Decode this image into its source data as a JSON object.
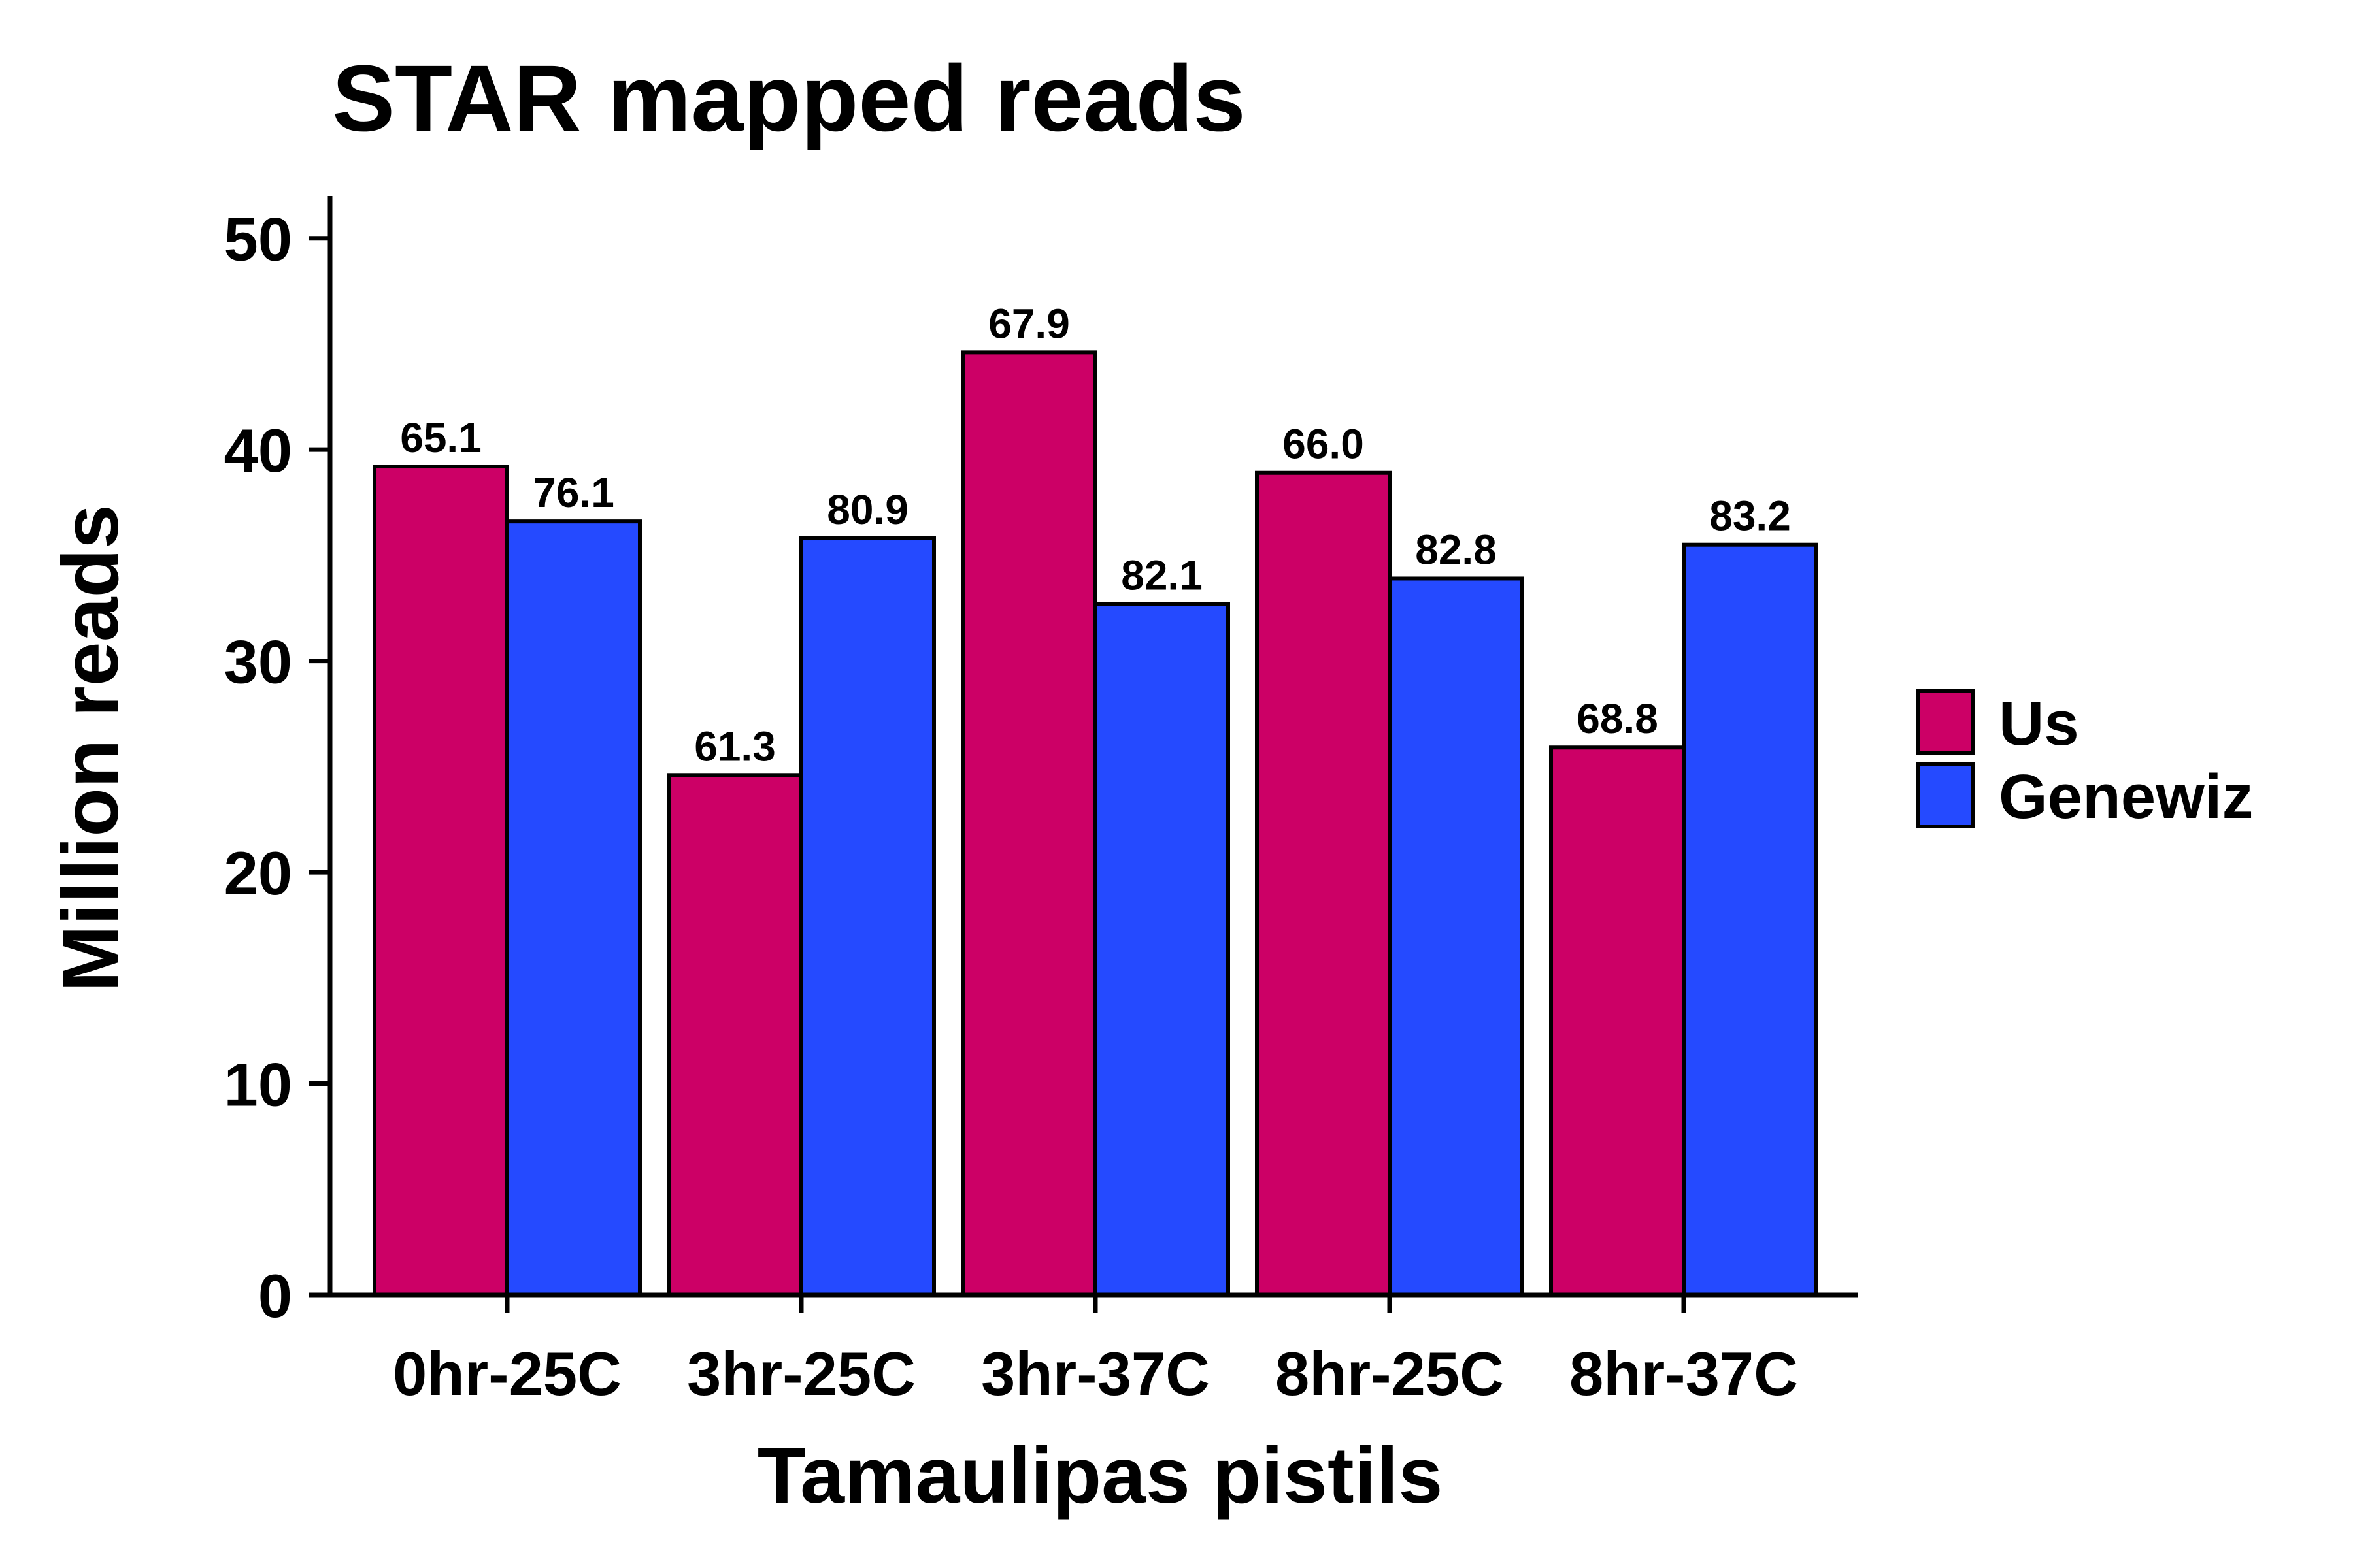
{
  "chart_data": {
    "type": "bar",
    "title": "STAR mapped reads",
    "xlabel": "Tamaulipas pistils",
    "ylabel": "Million reads",
    "categories": [
      "0hr-25C",
      "3hr-25C",
      "3hr-37C",
      "8hr-25C",
      "8hr-37C"
    ],
    "series": [
      {
        "name": "Us",
        "color": "#CC0066",
        "values": [
          39.2,
          24.6,
          44.6,
          38.9,
          25.9
        ],
        "labels": [
          "65.1",
          "61.3",
          "67.9",
          "66.0",
          "68.8"
        ]
      },
      {
        "name": "Genewiz",
        "color": "#254AFF",
        "values": [
          36.6,
          35.8,
          32.7,
          33.9,
          35.5
        ],
        "labels": [
          "76.1",
          "80.9",
          "82.1",
          "82.8",
          "83.2"
        ]
      }
    ],
    "ylim": [
      0,
      52
    ],
    "yticks": [
      0,
      10,
      20,
      30,
      40,
      50
    ],
    "grid": false,
    "legend_position": "right"
  }
}
